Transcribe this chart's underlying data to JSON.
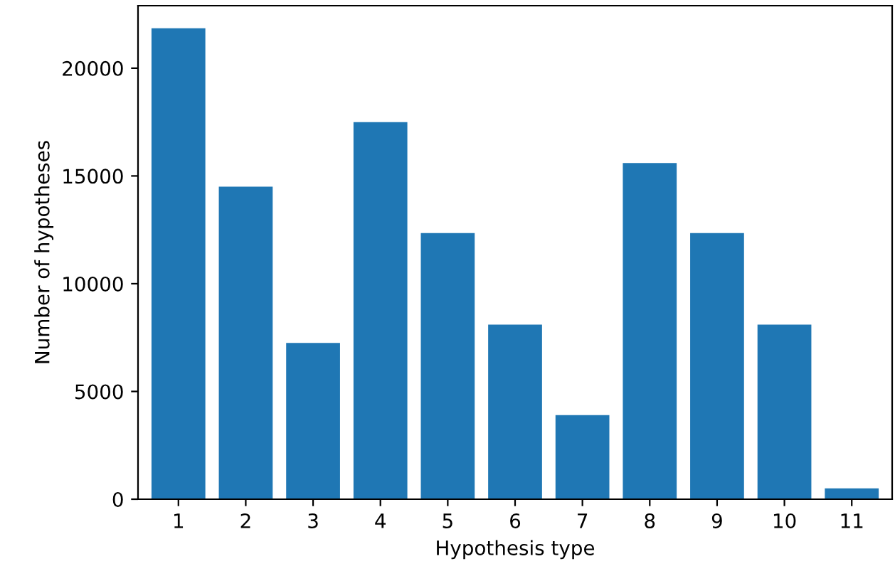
{
  "chart_data": {
    "type": "bar",
    "xlabel": "Hypothesis type",
    "ylabel": "Number of hypotheses",
    "categories": [
      "1",
      "2",
      "3",
      "4",
      "5",
      "6",
      "7",
      "8",
      "9",
      "10",
      "11"
    ],
    "values": [
      21850,
      14500,
      7250,
      17500,
      12350,
      8100,
      3900,
      15600,
      12350,
      8100,
      500
    ],
    "color": "#1f77b4",
    "ylim": [
      0,
      22900
    ],
    "yticks": [
      0,
      5000,
      10000,
      15000,
      20000
    ],
    "grid": false
  }
}
